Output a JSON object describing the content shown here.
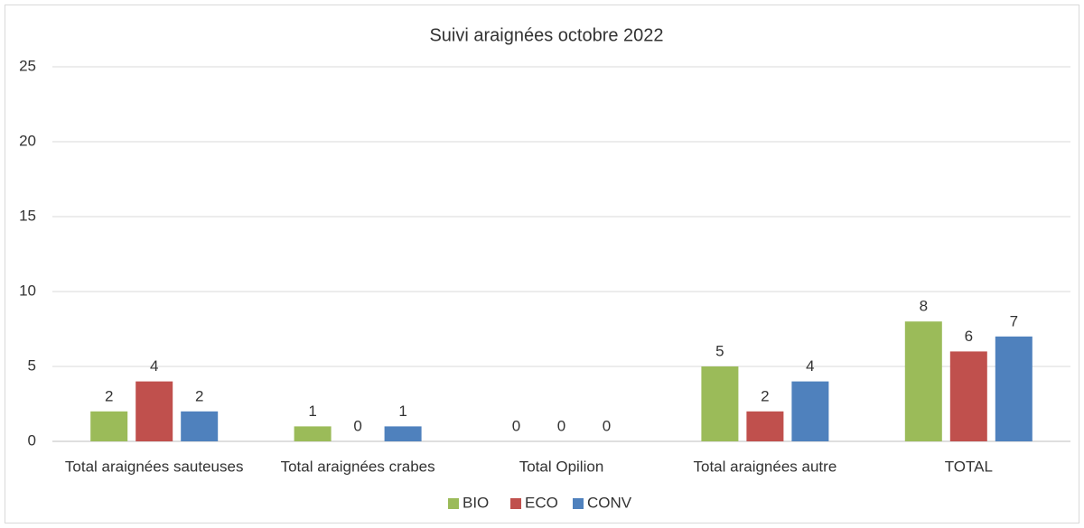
{
  "chart_data": {
    "type": "bar",
    "title": "Suivi araignées octobre 2022",
    "categories": [
      "Total araignées sauteuses",
      "Total araignées crabes",
      "Total Opilion",
      "Total araignées autre",
      "TOTAL"
    ],
    "series": [
      {
        "name": "BIO",
        "color": "#9bbb59",
        "values": [
          2,
          1,
          0,
          5,
          8
        ]
      },
      {
        "name": "ECO",
        "color": "#c0504d",
        "values": [
          4,
          0,
          0,
          2,
          6
        ]
      },
      {
        "name": "CONV",
        "color": "#4f81bd",
        "values": [
          2,
          1,
          0,
          4,
          7
        ]
      }
    ],
    "ylim": [
      0,
      25
    ],
    "yticks": [
      0,
      5,
      10,
      15,
      20,
      25
    ],
    "grid": true,
    "legend": "bottom"
  }
}
